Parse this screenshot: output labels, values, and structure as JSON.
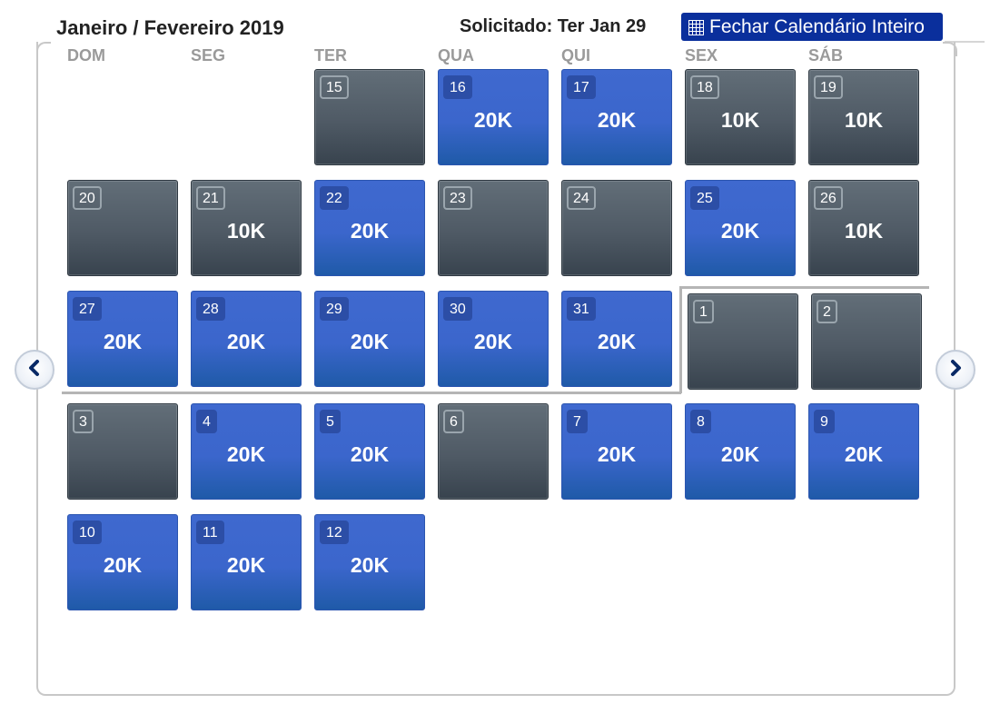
{
  "header": {
    "title": "Janeiro / Fevereiro 2019",
    "requested": "Solicitado: Ter Jan 29",
    "close_label": "Fechar Calendário Inteiro"
  },
  "weekdays": [
    "DOM",
    "SEG",
    "TER",
    "QUA",
    "QUI",
    "SEX",
    "SÁB"
  ],
  "colors": {
    "available": "#3b66cc",
    "unavailable": "#4f5a65",
    "header_button": "#0a2f9c"
  },
  "icons": {
    "close": "grid-icon",
    "prev": "chevron-left-icon",
    "next": "chevron-right-icon"
  },
  "weeks": [
    [
      null,
      null,
      {
        "day": "15",
        "price": "",
        "status": "unavailable"
      },
      {
        "day": "16",
        "price": "20K",
        "status": "available"
      },
      {
        "day": "17",
        "price": "20K",
        "status": "available"
      },
      {
        "day": "18",
        "price": "10K",
        "status": "unavailable"
      },
      {
        "day": "19",
        "price": "10K",
        "status": "unavailable"
      }
    ],
    [
      {
        "day": "20",
        "price": "",
        "status": "unavailable"
      },
      {
        "day": "21",
        "price": "10K",
        "status": "unavailable"
      },
      {
        "day": "22",
        "price": "20K",
        "status": "available"
      },
      {
        "day": "23",
        "price": "",
        "status": "unavailable"
      },
      {
        "day": "24",
        "price": "",
        "status": "unavailable"
      },
      {
        "day": "25",
        "price": "20K",
        "status": "available"
      },
      {
        "day": "26",
        "price": "10K",
        "status": "unavailable"
      }
    ],
    [
      {
        "day": "27",
        "price": "20K",
        "status": "available"
      },
      {
        "day": "28",
        "price": "20K",
        "status": "available"
      },
      {
        "day": "29",
        "price": "20K",
        "status": "available"
      },
      {
        "day": "30",
        "price": "20K",
        "status": "available"
      },
      {
        "day": "31",
        "price": "20K",
        "status": "available"
      },
      {
        "day": "1",
        "price": "",
        "status": "unavailable"
      },
      {
        "day": "2",
        "price": "",
        "status": "unavailable"
      }
    ],
    [
      {
        "day": "3",
        "price": "",
        "status": "unavailable"
      },
      {
        "day": "4",
        "price": "20K",
        "status": "available"
      },
      {
        "day": "5",
        "price": "20K",
        "status": "available"
      },
      {
        "day": "6",
        "price": "",
        "status": "unavailable"
      },
      {
        "day": "7",
        "price": "20K",
        "status": "available"
      },
      {
        "day": "8",
        "price": "20K",
        "status": "available"
      },
      {
        "day": "9",
        "price": "20K",
        "status": "available"
      }
    ],
    [
      {
        "day": "10",
        "price": "20K",
        "status": "available"
      },
      {
        "day": "11",
        "price": "20K",
        "status": "available"
      },
      {
        "day": "12",
        "price": "20K",
        "status": "available"
      },
      null,
      null,
      null,
      null
    ]
  ]
}
